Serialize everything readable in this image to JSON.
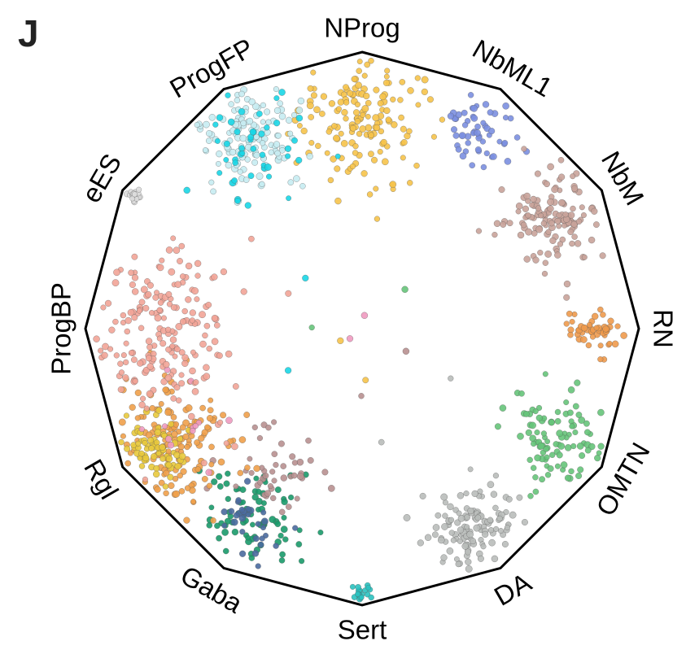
{
  "panel": {
    "letter": "J"
  },
  "chart_data": {
    "type": "scatter",
    "layout": "radial polygon (radviz-style)",
    "title": "",
    "vertices": [
      {
        "label": "NProg",
        "color": "#f6c34a"
      },
      {
        "label": "NbML1",
        "color": "#7b8fe0"
      },
      {
        "label": "NbM",
        "color": "#c9a39a"
      },
      {
        "label": "RN",
        "color": "#ee9a4d"
      },
      {
        "label": "OMTN",
        "color": "#66c47a"
      },
      {
        "label": "DA",
        "color": "#b9bcba"
      },
      {
        "label": "Sert",
        "color": "#2ac2c0"
      },
      {
        "label": "Gaba",
        "color": "#1a9a6a"
      },
      {
        "label": "Rgl",
        "color": "#f0a04a"
      },
      {
        "label": "ProgBP",
        "color": "#f2a497"
      },
      {
        "label": "eES",
        "color": "#dddddd"
      },
      {
        "label": "ProgFP",
        "color": "#c6ecf2"
      }
    ],
    "extra_point_colors": {
      "progfp_dark": "#1ad6e6",
      "rgl_yellow": "#e8c93c",
      "gaba_blue": "#4a6a9e",
      "pink": "#f09ac0",
      "mauve": "#b89090"
    }
  }
}
